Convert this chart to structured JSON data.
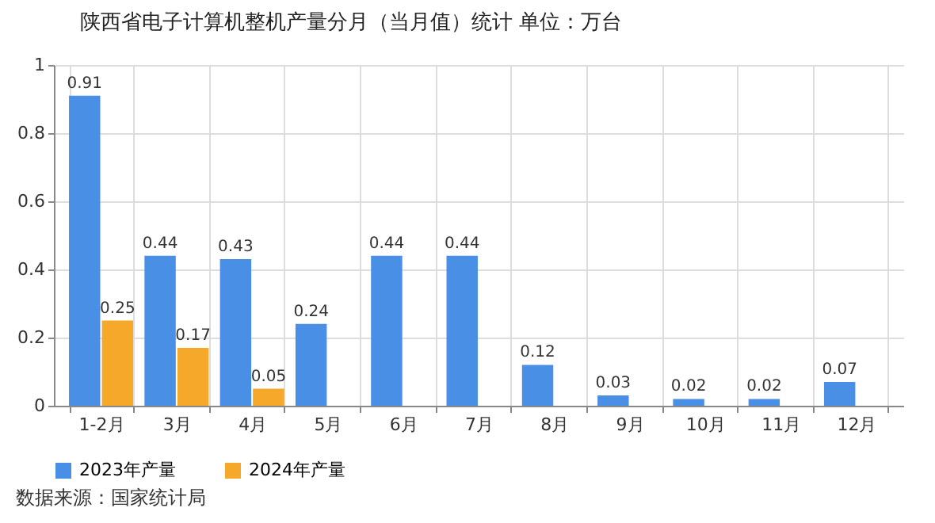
{
  "chart_data": {
    "type": "bar",
    "title": "陕西省电子计算机整机产量分月（当月值）统计  单位：万台",
    "categories": [
      "1-2月",
      "3月",
      "4月",
      "5月",
      "6月",
      "7月",
      "8月",
      "9月",
      "10月",
      "11月",
      "12月"
    ],
    "series": [
      {
        "name": "2023年产量",
        "color": "#4a8fe6",
        "values": [
          0.91,
          0.44,
          0.43,
          0.24,
          0.44,
          0.44,
          0.12,
          0.03,
          0.02,
          0.02,
          0.07
        ]
      },
      {
        "name": "2024年产量",
        "color": "#f5a82a",
        "values": [
          0.25,
          0.17,
          0.05,
          null,
          null,
          null,
          null,
          null,
          null,
          null,
          null
        ]
      }
    ],
    "ylim": [
      0,
      1
    ],
    "yticks": [
      0,
      0.2,
      0.4,
      0.6,
      0.8,
      1
    ],
    "grid": true,
    "legend": "bottom",
    "data_labels": true,
    "annotations": [
      "数据来源：国家统计局"
    ]
  }
}
